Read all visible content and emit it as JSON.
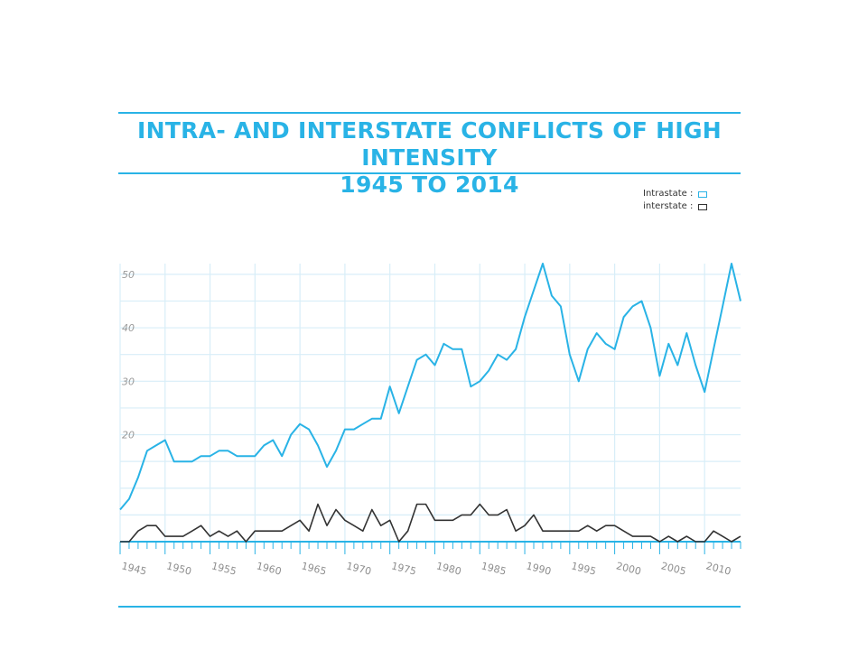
{
  "chart_data": {
    "type": "line",
    "title": "INTRA- AND INTERSTATE CONFLICTS OF HIGH INTENSITY",
    "subtitle": "1945 TO 2014",
    "xlabel": "",
    "ylabel": "",
    "xlim": [
      1945,
      2014
    ],
    "ylim": [
      0,
      52
    ],
    "grid": true,
    "legend_position": "top-right",
    "y_ticks": [
      {
        "label": "20",
        "value": 20
      },
      {
        "label": "30",
        "value": 30
      },
      {
        "label": "40",
        "value": 40
      },
      {
        "label": "50",
        "value": 50
      }
    ],
    "x_ticks": [
      {
        "label": "1945",
        "value": 1945
      },
      {
        "label": "1950",
        "value": 1950
      },
      {
        "label": "1955",
        "value": 1955
      },
      {
        "label": "1960",
        "value": 1960
      },
      {
        "label": "1965",
        "value": 1965
      },
      {
        "label": "1970",
        "value": 1970
      },
      {
        "label": "1975",
        "value": 1975
      },
      {
        "label": "1980",
        "value": 1980
      },
      {
        "label": "1985",
        "value": 1985
      },
      {
        "label": "1990",
        "value": 1990
      },
      {
        "label": "1995",
        "value": 1995
      },
      {
        "label": "2000",
        "value": 2000
      },
      {
        "label": "2005",
        "value": 2005
      },
      {
        "label": "2010",
        "value": 2010
      }
    ],
    "x": [
      1945,
      1946,
      1947,
      1948,
      1949,
      1950,
      1951,
      1952,
      1953,
      1954,
      1955,
      1956,
      1957,
      1958,
      1959,
      1960,
      1961,
      1962,
      1963,
      1964,
      1965,
      1966,
      1967,
      1968,
      1969,
      1970,
      1971,
      1972,
      1973,
      1974,
      1975,
      1976,
      1977,
      1978,
      1979,
      1980,
      1981,
      1982,
      1983,
      1984,
      1985,
      1986,
      1987,
      1988,
      1989,
      1990,
      1991,
      1992,
      1993,
      1994,
      1995,
      1996,
      1997,
      1998,
      1999,
      2000,
      2001,
      2002,
      2003,
      2004,
      2005,
      2006,
      2007,
      2008,
      2009,
      2010,
      2011,
      2012,
      2013,
      2014
    ],
    "series": [
      {
        "name": "Intrastate :",
        "color": "#29b3e6",
        "values": [
          6,
          8,
          12,
          17,
          18,
          19,
          15,
          15,
          15,
          16,
          16,
          17,
          17,
          16,
          16,
          16,
          18,
          19,
          16,
          20,
          22,
          21,
          18,
          14,
          17,
          21,
          21,
          22,
          23,
          23,
          29,
          24,
          29,
          34,
          35,
          33,
          37,
          36,
          36,
          29,
          30,
          32,
          35,
          34,
          36,
          42,
          47,
          52,
          46,
          44,
          35,
          30,
          36,
          39,
          37,
          36,
          42,
          44,
          45,
          40,
          31,
          37,
          33,
          39,
          33,
          28,
          36,
          44,
          52,
          45
        ],
        "line_width": 2
      },
      {
        "name": "interstate :",
        "color": "#333333",
        "values": [
          0,
          0,
          2,
          3,
          3,
          1,
          1,
          1,
          2,
          3,
          1,
          2,
          1,
          2,
          0,
          2,
          2,
          2,
          2,
          3,
          4,
          2,
          7,
          3,
          6,
          4,
          3,
          2,
          6,
          3,
          4,
          0,
          2,
          7,
          7,
          4,
          4,
          4,
          5,
          5,
          7,
          5,
          5,
          6,
          2,
          3,
          5,
          2,
          2,
          2,
          2,
          2,
          3,
          2,
          3,
          3,
          2,
          1,
          1,
          1,
          0,
          1,
          0,
          1,
          0,
          0,
          2,
          1,
          0,
          1
        ],
        "line_width": 1.6
      }
    ]
  }
}
